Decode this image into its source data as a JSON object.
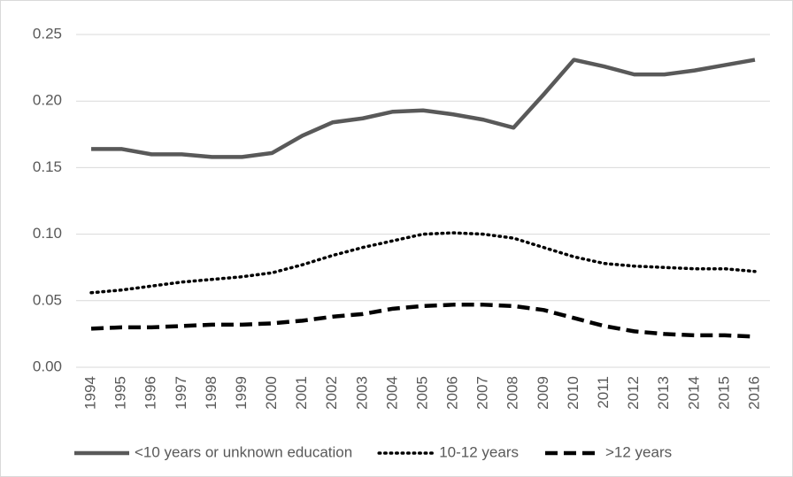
{
  "chart_data": {
    "type": "line",
    "categories": [
      "1994",
      "1995",
      "1996",
      "1997",
      "1998",
      "1999",
      "2000",
      "2001",
      "2002",
      "2003",
      "2004",
      "2005",
      "2006",
      "2007",
      "2008",
      "2009",
      "2010",
      "2011",
      "2012",
      "2013",
      "2014",
      "2015",
      "2016"
    ],
    "series": [
      {
        "name": "<10 years or unknown education",
        "color": "#595959",
        "style": "solid",
        "values": [
          0.164,
          0.164,
          0.16,
          0.16,
          0.158,
          0.158,
          0.161,
          0.174,
          0.184,
          0.187,
          0.192,
          0.193,
          0.19,
          0.186,
          0.18,
          0.205,
          0.231,
          0.226,
          0.22,
          0.22,
          0.223,
          0.227,
          0.231
        ]
      },
      {
        "name": "10-12 years",
        "color": "#000000",
        "style": "dotted",
        "values": [
          0.056,
          0.058,
          0.061,
          0.064,
          0.066,
          0.068,
          0.071,
          0.077,
          0.084,
          0.09,
          0.095,
          0.1,
          0.101,
          0.1,
          0.097,
          0.09,
          0.083,
          0.078,
          0.076,
          0.075,
          0.074,
          0.074,
          0.072
        ]
      },
      {
        "name": ">12 years",
        "color": "#000000",
        "style": "dashed",
        "values": [
          0.029,
          0.03,
          0.03,
          0.031,
          0.032,
          0.032,
          0.033,
          0.035,
          0.038,
          0.04,
          0.044,
          0.046,
          0.047,
          0.047,
          0.046,
          0.043,
          0.037,
          0.031,
          0.027,
          0.025,
          0.024,
          0.024,
          0.023
        ]
      }
    ],
    "ylim": [
      0,
      0.25
    ],
    "yticks": [
      {
        "value": 0,
        "label": "0.00"
      },
      0.05,
      {
        "value": 0.1,
        "label": "0.10"
      },
      0.15,
      {
        "value": 0.2,
        "label": "0.20"
      },
      0.25
    ],
    "grid": true,
    "legend": "bottom"
  }
}
